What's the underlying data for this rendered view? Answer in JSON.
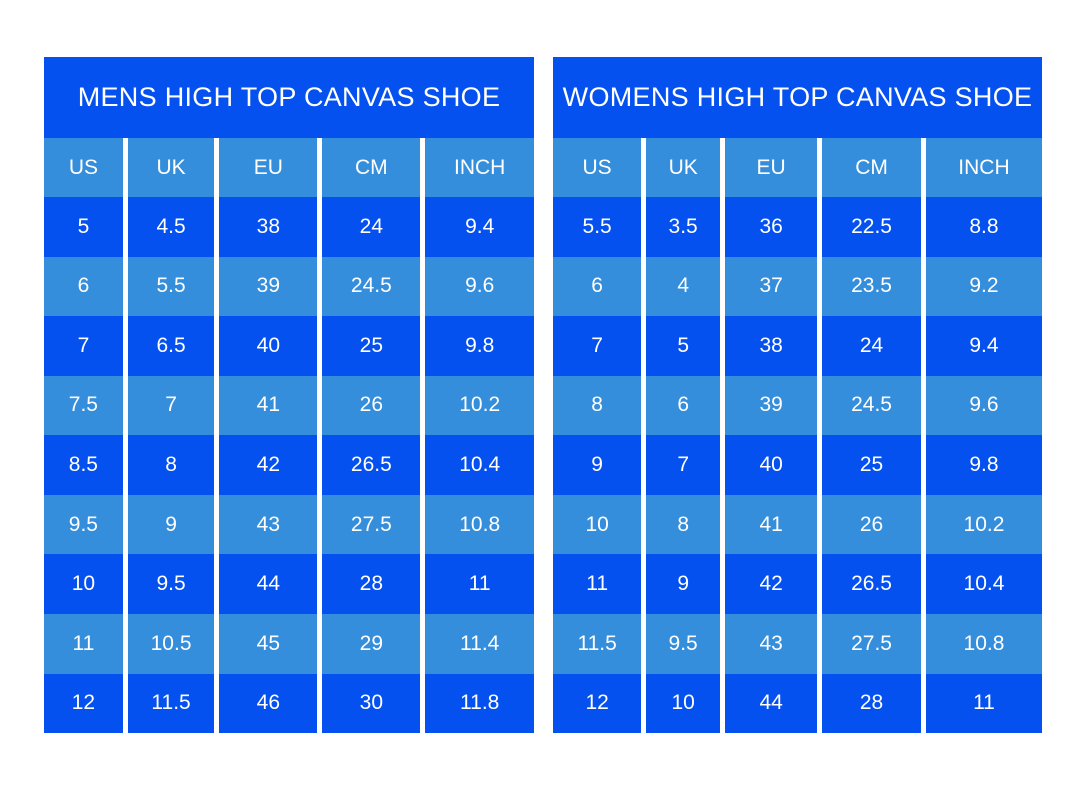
{
  "colors": {
    "dark_blue": "#0551f0",
    "light_blue": "#358edb",
    "text": "#ffffff",
    "page_bg": "#ffffff"
  },
  "chart_data": [
    {
      "type": "table",
      "title": "MENS HIGH TOP CANVAS SHOE",
      "columns": [
        "US",
        "UK",
        "EU",
        "CM",
        "INCH"
      ],
      "rows": [
        [
          "5",
          "4.5",
          "38",
          "24",
          "9.4"
        ],
        [
          "6",
          "5.5",
          "39",
          "24.5",
          "9.6"
        ],
        [
          "7",
          "6.5",
          "40",
          "25",
          "9.8"
        ],
        [
          "7.5",
          "7",
          "41",
          "26",
          "10.2"
        ],
        [
          "8.5",
          "8",
          "42",
          "26.5",
          "10.4"
        ],
        [
          "9.5",
          "9",
          "43",
          "27.5",
          "10.8"
        ],
        [
          "10",
          "9.5",
          "44",
          "28",
          "11"
        ],
        [
          "11",
          "10.5",
          "45",
          "29",
          "11.4"
        ],
        [
          "12",
          "11.5",
          "46",
          "30",
          "11.8"
        ]
      ]
    },
    {
      "type": "table",
      "title": "WOMENS HIGH TOP CANVAS SHOE",
      "columns": [
        "US",
        "UK",
        "EU",
        "CM",
        "INCH"
      ],
      "rows": [
        [
          "5.5",
          "3.5",
          "36",
          "22.5",
          "8.8"
        ],
        [
          "6",
          "4",
          "37",
          "23.5",
          "9.2"
        ],
        [
          "7",
          "5",
          "38",
          "24",
          "9.4"
        ],
        [
          "8",
          "6",
          "39",
          "24.5",
          "9.6"
        ],
        [
          "9",
          "7",
          "40",
          "25",
          "9.8"
        ],
        [
          "10",
          "8",
          "41",
          "26",
          "10.2"
        ],
        [
          "11",
          "9",
          "42",
          "26.5",
          "10.4"
        ],
        [
          "11.5",
          "9.5",
          "43",
          "27.5",
          "10.8"
        ],
        [
          "12",
          "10",
          "44",
          "28",
          "11"
        ]
      ]
    }
  ]
}
